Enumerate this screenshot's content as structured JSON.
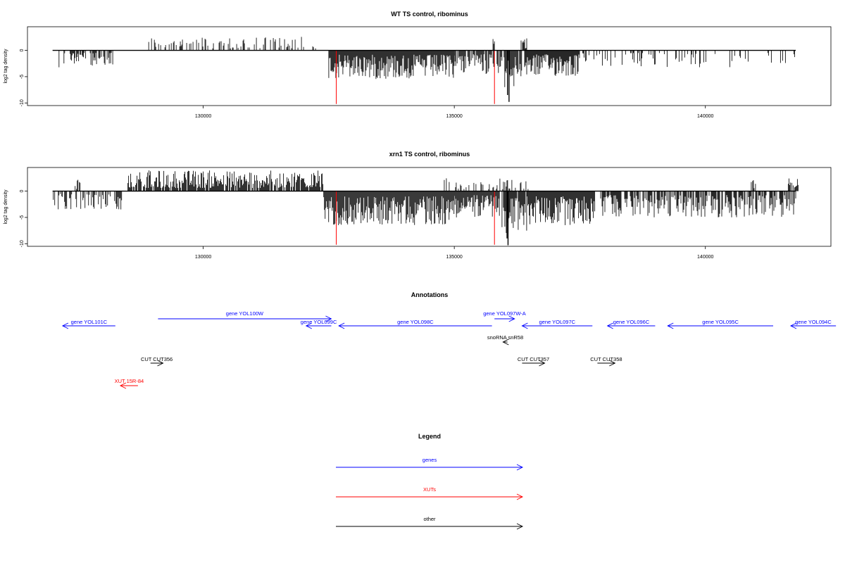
{
  "chart_data": [
    {
      "type": "bar",
      "title": "WT TS control, ribominus",
      "ylabel": "log2 tag density",
      "xlim": [
        126500,
        142500
      ],
      "ylim": [
        -10.5,
        4.5
      ],
      "x_ticks": [
        130000,
        135000,
        140000
      ],
      "y_ticks": [
        0,
        -5,
        -10
      ],
      "baseline_range": [
        127000,
        141800
      ],
      "plus_strand_segments": [
        {
          "start": 128900,
          "end": 132250,
          "max": 2.6,
          "density": 0.35
        },
        {
          "start": 135770,
          "end": 135800,
          "max": 2.2,
          "density": 1.0
        },
        {
          "start": 136330,
          "end": 136450,
          "max": 2.3,
          "density": 0.8
        }
      ],
      "minus_strand_segments": [
        {
          "start": 127100,
          "end": 127300,
          "max": -3.5,
          "density": 0.3
        },
        {
          "start": 127350,
          "end": 127700,
          "max": -3.0,
          "density": 0.7
        },
        {
          "start": 127750,
          "end": 128200,
          "max": -3.0,
          "density": 0.6
        },
        {
          "start": 132500,
          "end": 135000,
          "max": -5.5,
          "density": 1.0
        },
        {
          "start": 135000,
          "end": 135800,
          "max": -4.5,
          "density": 0.8
        },
        {
          "start": 135850,
          "end": 136350,
          "max": -7.5,
          "density": 0.9
        },
        {
          "start": 136400,
          "end": 137500,
          "max": -5.0,
          "density": 1.0
        },
        {
          "start": 137500,
          "end": 141800,
          "max": -3.2,
          "density": 0.2
        }
      ],
      "spikes": [
        {
          "x": 136090,
          "value": -9.8
        },
        {
          "x": 136060,
          "value": -8.5
        }
      ],
      "red_markers": [
        {
          "x": 132650,
          "value": -10.2
        },
        {
          "x": 135800,
          "value": -10.2
        }
      ]
    },
    {
      "type": "bar",
      "title": "xrn1 TS control, ribominus",
      "ylabel": "log2 tag density",
      "xlim": [
        126500,
        142500
      ],
      "ylim": [
        -10.5,
        4.5
      ],
      "x_ticks": [
        130000,
        135000,
        140000
      ],
      "y_ticks": [
        0,
        -5,
        -10
      ],
      "baseline_range": [
        127000,
        141800
      ],
      "plus_strand_segments": [
        {
          "start": 127450,
          "end": 127550,
          "max": 2.2,
          "density": 0.6
        },
        {
          "start": 128500,
          "end": 132400,
          "max": 4.0,
          "density": 0.85
        },
        {
          "start": 134800,
          "end": 136500,
          "max": 2.5,
          "density": 0.35
        },
        {
          "start": 140900,
          "end": 141000,
          "max": 2.2,
          "density": 0.6
        },
        {
          "start": 141650,
          "end": 141850,
          "max": 2.6,
          "density": 0.7
        }
      ],
      "minus_strand_segments": [
        {
          "start": 127000,
          "end": 128400,
          "max": -3.5,
          "density": 0.55
        },
        {
          "start": 132400,
          "end": 135000,
          "max": -6.5,
          "density": 1.0
        },
        {
          "start": 135000,
          "end": 135900,
          "max": -5.0,
          "density": 1.0
        },
        {
          "start": 135950,
          "end": 136450,
          "max": -8.0,
          "density": 0.9
        },
        {
          "start": 136450,
          "end": 137800,
          "max": -6.5,
          "density": 1.0
        },
        {
          "start": 137900,
          "end": 141800,
          "max": -5.0,
          "density": 0.7
        }
      ],
      "spikes": [
        {
          "x": 136070,
          "value": -10.3
        },
        {
          "x": 136050,
          "value": -9.0
        }
      ],
      "red_markers": [
        {
          "x": 132650,
          "value": -10.2
        },
        {
          "x": 135800,
          "value": -10.2
        }
      ]
    }
  ],
  "annotations": {
    "title": "Annotations",
    "features": [
      {
        "label": "gene YOL101C",
        "start": 128250,
        "end": 127200,
        "row": 0,
        "color": "#0000ff"
      },
      {
        "label": "gene YOL100W",
        "start": 129100,
        "end": 132550,
        "row": -1,
        "color": "#0000ff"
      },
      {
        "label": "gene YOL099C",
        "start": 132550,
        "end": 132050,
        "row": 0,
        "color": "#0000ff"
      },
      {
        "label": "gene YOL098C",
        "start": 135750,
        "end": 132700,
        "row": 0,
        "color": "#0000ff"
      },
      {
        "label": "gene YOL097W-A",
        "start": 135800,
        "end": 136200,
        "row": -1,
        "color": "#0000ff"
      },
      {
        "label": "gene YOL097C",
        "start": 137750,
        "end": 136350,
        "row": 0,
        "color": "#0000ff"
      },
      {
        "label": "gene YOL096C",
        "start": 139000,
        "end": 138050,
        "row": 0,
        "color": "#0000ff"
      },
      {
        "label": "gene YOL095C",
        "start": 141350,
        "end": 139250,
        "row": 0,
        "color": "#0000ff"
      },
      {
        "label": "gene YOL094C",
        "start": 142600,
        "end": 141700,
        "row": 0,
        "color": "#0000ff"
      },
      {
        "label": "snoRNA snR58",
        "start": 136060,
        "end": 135970,
        "row": 1,
        "color": "#000000"
      },
      {
        "label": "CUT CUT356",
        "start": 128950,
        "end": 129200,
        "row": 2,
        "color": "#000000"
      },
      {
        "label": "CUT CUT357",
        "start": 136350,
        "end": 136800,
        "row": 2,
        "color": "#000000"
      },
      {
        "label": "CUT CUT358",
        "start": 137850,
        "end": 138200,
        "row": 2,
        "color": "#000000"
      },
      {
        "label": "XUT 15R-84",
        "start": 128700,
        "end": 128350,
        "row": 3,
        "color": "#ff0000"
      }
    ]
  },
  "legend": {
    "title": "Legend",
    "items": [
      {
        "label": "genes",
        "color": "#0000ff"
      },
      {
        "label": "XUTs",
        "color": "#ff0000"
      },
      {
        "label": "other",
        "color": "#000000"
      }
    ]
  }
}
